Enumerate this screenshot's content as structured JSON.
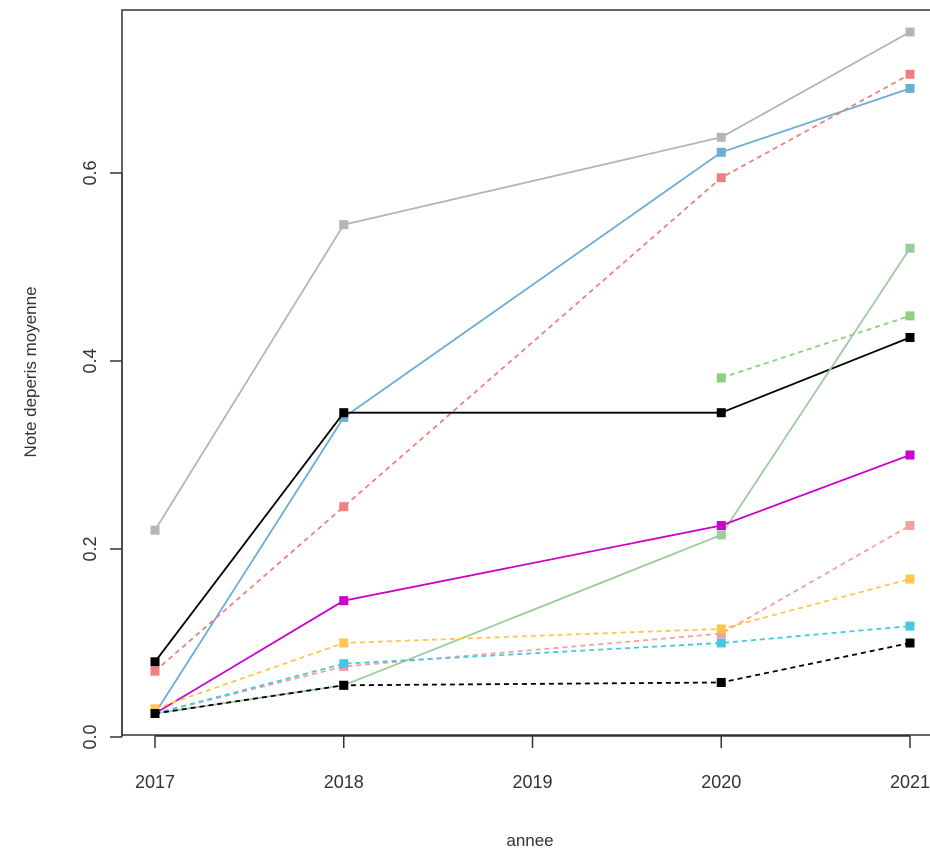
{
  "chart_data": {
    "type": "line",
    "title": "",
    "xlabel": "annee",
    "ylabel": "Note deperis moyenne",
    "xlim": [
      2017,
      2021
    ],
    "ylim": [
      0,
      0.75
    ],
    "x_ticks": [
      2017,
      2018,
      2019,
      2020,
      2021
    ],
    "x_tick_labels": [
      "2017",
      "2018",
      "2019",
      "2020",
      "2021"
    ],
    "y_ticks": [
      0.0,
      0.2,
      0.4,
      0.6
    ],
    "y_tick_labels": [
      "0.0",
      "0.2",
      "0.4",
      "0.6"
    ],
    "grid": false,
    "legend": "none",
    "series": [
      {
        "color": "#b5b5b5",
        "style": "solid",
        "x": [
          2017,
          2018,
          2020,
          2021
        ],
        "y": [
          0.22,
          0.545,
          0.638,
          0.75
        ]
      },
      {
        "color": "#6aaed6",
        "style": "solid",
        "x": [
          2017,
          2018,
          2020,
          2021
        ],
        "y": [
          0.025,
          0.34,
          0.622,
          0.69
        ]
      },
      {
        "color": "#f08080",
        "style": "dashed",
        "x": [
          2017,
          2018,
          2020,
          2021
        ],
        "y": [
          0.07,
          0.245,
          0.595,
          0.705
        ]
      },
      {
        "color": "#000000",
        "style": "solid",
        "x": [
          2017,
          2018,
          2020,
          2021
        ],
        "y": [
          0.08,
          0.345,
          0.345,
          0.425
        ]
      },
      {
        "color": "#9ccc9c",
        "style": "solid",
        "x": [
          2017,
          2018,
          2020,
          2021
        ],
        "y": [
          0.025,
          0.055,
          0.215,
          0.52
        ]
      },
      {
        "color": "#8cd07c",
        "style": "dashed",
        "x": [
          2020,
          2021
        ],
        "y": [
          0.382,
          0.448
        ]
      },
      {
        "color": "#cc00cc",
        "style": "solid",
        "x": [
          2017,
          2018,
          2020,
          2021
        ],
        "y": [
          0.025,
          0.145,
          0.225,
          0.3
        ]
      },
      {
        "color": "#f4a0a0",
        "style": "dashed",
        "x": [
          2017,
          2018,
          2020,
          2021
        ],
        "y": [
          0.025,
          0.075,
          0.11,
          0.225
        ]
      },
      {
        "color": "#ffc64a",
        "style": "dashed",
        "x": [
          2017,
          2018,
          2020,
          2021
        ],
        "y": [
          0.03,
          0.1,
          0.115,
          0.168
        ]
      },
      {
        "color": "#46c8e0",
        "style": "dashed",
        "x": [
          2017,
          2018,
          2020,
          2021
        ],
        "y": [
          0.025,
          0.078,
          0.1,
          0.118
        ]
      },
      {
        "color": "#000000",
        "style": "dashed",
        "x": [
          2017,
          2018,
          2020,
          2021
        ],
        "y": [
          0.025,
          0.055,
          0.058,
          0.1
        ]
      }
    ]
  }
}
